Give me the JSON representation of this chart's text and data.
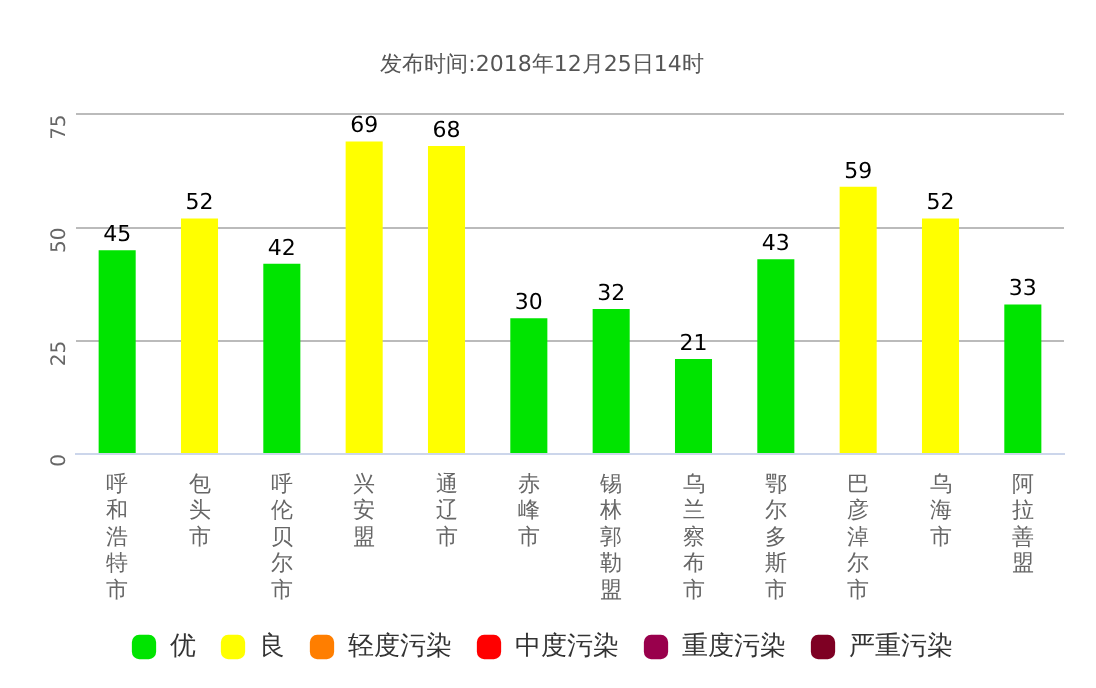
{
  "chart_data": {
    "type": "bar",
    "title": "发布时间:2018年12月25日14时",
    "categories": [
      "呼和浩特市",
      "包头市",
      "呼伦贝尔市",
      "兴安盟",
      "通辽市",
      "赤峰市",
      "锡林郭勒盟",
      "乌兰察布市",
      "鄂尔多斯市",
      "巴彦淖尔市",
      "乌海市",
      "阿拉善盟"
    ],
    "series": [
      {
        "name": "优",
        "color": "#00e400",
        "values": [
          45,
          null,
          42,
          null,
          null,
          30,
          32,
          21,
          43,
          null,
          null,
          33
        ]
      },
      {
        "name": "良",
        "color": "#ffff00",
        "values": [
          null,
          52,
          null,
          69,
          68,
          null,
          null,
          null,
          null,
          59,
          52,
          null
        ]
      },
      {
        "name": "轻度污染",
        "color": "#ff7e00",
        "values": [
          null,
          null,
          null,
          null,
          null,
          null,
          null,
          null,
          null,
          null,
          null,
          null
        ]
      },
      {
        "name": "中度污染",
        "color": "#ff0000",
        "values": [
          null,
          null,
          null,
          null,
          null,
          null,
          null,
          null,
          null,
          null,
          null,
          null
        ]
      },
      {
        "name": "重度污染",
        "color": "#99004c",
        "values": [
          null,
          null,
          null,
          null,
          null,
          null,
          null,
          null,
          null,
          null,
          null,
          null
        ]
      },
      {
        "name": "严重污染",
        "color": "#7e0023",
        "values": [
          null,
          null,
          null,
          null,
          null,
          null,
          null,
          null,
          null,
          null,
          null,
          null
        ]
      }
    ],
    "ylim": [
      0,
      75
    ],
    "yticks": [
      0,
      25,
      50,
      75
    ],
    "grid": "y",
    "legend": "bottom",
    "data_labels": true
  }
}
